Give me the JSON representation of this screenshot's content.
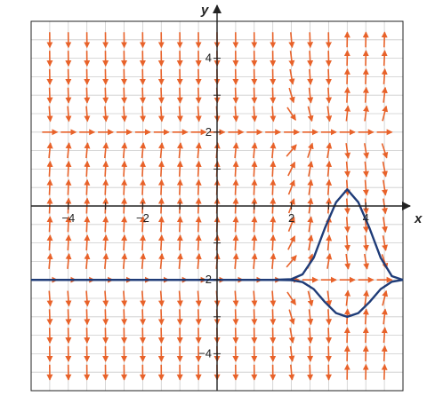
{
  "chart_data": {
    "type": "scatter",
    "title": "",
    "xlabel": "x",
    "ylabel": "y",
    "xlim": [
      -5,
      5
    ],
    "ylim": [
      -5,
      5
    ],
    "grid": true,
    "x_tick_labels": [
      {
        "value": -4,
        "label": "−4"
      },
      {
        "value": -2,
        "label": "−2"
      },
      {
        "value": 2,
        "label": "2"
      },
      {
        "value": 4,
        "label": "4"
      }
    ],
    "y_tick_labels": [
      {
        "value": 4,
        "label": "4"
      },
      {
        "value": 2,
        "label": "2"
      },
      {
        "value": -2,
        "label": "−2"
      },
      {
        "value": -4,
        "label": "−4"
      }
    ],
    "direction_field": {
      "x_values": [
        -4.5,
        -4,
        -3.5,
        -3,
        -2.5,
        -2,
        -1.5,
        -1,
        -0.5,
        0,
        0.5,
        1,
        1.5,
        2,
        2.5,
        3,
        3.5,
        4,
        4.5
      ],
      "y_values": [
        4.5,
        4,
        3.5,
        3,
        2.5,
        2,
        1.5,
        1,
        0.5,
        0,
        -0.5,
        -1,
        -1.5,
        -2,
        -2.5,
        -3,
        -3.5,
        -4,
        -4.5
      ],
      "equilibria": [
        2,
        -2
      ],
      "color": "#e8622a"
    },
    "solution_curves": {
      "color": "#1f3c78",
      "upper": {
        "x": [
          -5,
          -2,
          0,
          1,
          1.5,
          2,
          2.3,
          2.6,
          2.9,
          3.2,
          3.5,
          3.8,
          4.1,
          4.4,
          4.7,
          5
        ],
        "y": [
          -2,
          -2,
          -2,
          -2,
          -2,
          -1.98,
          -1.85,
          -1.4,
          -0.6,
          0.1,
          0.45,
          0.1,
          -0.6,
          -1.4,
          -1.9,
          -2
        ]
      },
      "lower": {
        "x": [
          -5,
          -2,
          0,
          1,
          1.5,
          2,
          2.3,
          2.6,
          2.9,
          3.2,
          3.5,
          3.8,
          4.1,
          4.4,
          4.7,
          5
        ],
        "y": [
          -2,
          -2,
          -2,
          -2,
          -2,
          -2.01,
          -2.06,
          -2.25,
          -2.6,
          -2.9,
          -3.0,
          -2.9,
          -2.6,
          -2.25,
          -2.05,
          -2
        ]
      }
    },
    "colors": {
      "grid": "#cccccc",
      "axis": "#222222",
      "frame": "#222222"
    }
  }
}
